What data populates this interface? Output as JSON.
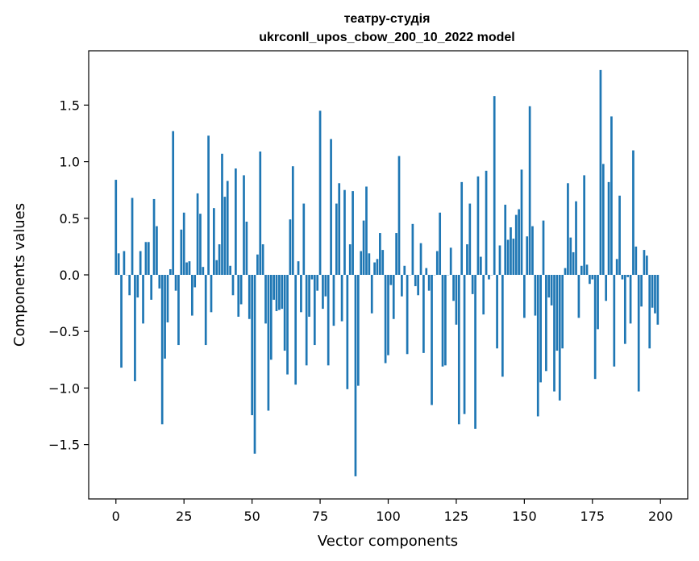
{
  "chart_data": {
    "type": "bar",
    "title_line1": "театру-студія",
    "title_line2": "ukrconll_upos_cbow_200_10_2022 model",
    "xlabel": "Vector components",
    "ylabel": "Components values",
    "xlim": [
      -10,
      210
    ],
    "ylim": [
      -1.98,
      1.98
    ],
    "xticks": [
      0,
      25,
      50,
      75,
      100,
      125,
      150,
      175,
      200
    ],
    "yticks": [
      -1.5,
      -1.0,
      -0.5,
      0.0,
      0.5,
      1.0,
      1.5
    ],
    "ytick_labels": [
      "−1.5",
      "−1.0",
      "−0.5",
      "0.0",
      "0.5",
      "1.0",
      "1.5"
    ],
    "grid": false,
    "bar_color": "#1f77b4",
    "values": [
      0.84,
      0.19,
      -0.82,
      0.21,
      0.0,
      -0.18,
      0.68,
      -0.94,
      -0.2,
      0.21,
      -0.43,
      0.29,
      0.29,
      -0.22,
      0.67,
      0.43,
      -0.12,
      -1.32,
      -0.74,
      -0.42,
      0.05,
      1.27,
      -0.14,
      -0.62,
      0.4,
      0.55,
      0.11,
      0.12,
      -0.36,
      -0.11,
      0.72,
      0.54,
      0.07,
      -0.62,
      1.23,
      -0.33,
      0.59,
      0.13,
      0.27,
      1.07,
      0.69,
      0.83,
      0.08,
      -0.18,
      0.94,
      -0.37,
      -0.26,
      0.88,
      0.47,
      -0.39,
      -1.24,
      -1.58,
      0.18,
      1.09,
      0.27,
      -0.43,
      -1.2,
      -0.75,
      -0.22,
      -0.32,
      -0.31,
      -0.3,
      -0.67,
      -0.88,
      0.49,
      0.96,
      -0.97,
      0.12,
      -0.33,
      0.63,
      -0.8,
      -0.37,
      -0.04,
      -0.62,
      -0.14,
      1.45,
      -0.3,
      -0.19,
      -0.8,
      1.2,
      -0.45,
      0.63,
      0.81,
      -0.41,
      0.75,
      -1.01,
      0.27,
      0.74,
      -1.78,
      -0.98,
      0.21,
      0.48,
      0.78,
      0.19,
      -0.34,
      0.11,
      0.14,
      0.37,
      0.22,
      -0.78,
      -0.71,
      -0.09,
      -0.39,
      0.37,
      1.05,
      -0.19,
      0.08,
      -0.7,
      0.0,
      0.45,
      -0.1,
      -0.18,
      0.28,
      -0.69,
      0.06,
      -0.14,
      -1.15,
      0.0,
      0.21,
      0.55,
      -0.81,
      -0.8,
      0.0,
      0.24,
      -0.23,
      -0.44,
      -1.32,
      0.82,
      -1.23,
      0.27,
      0.63,
      -0.17,
      -1.36,
      0.87,
      0.16,
      -0.35,
      0.92,
      -0.04,
      0.0,
      1.58,
      -0.65,
      0.26,
      -0.9,
      0.62,
      0.31,
      0.42,
      0.32,
      0.53,
      0.58,
      0.93,
      -0.38,
      0.34,
      1.49,
      0.43,
      -0.36,
      -1.25,
      -0.95,
      0.48,
      -0.85,
      -0.2,
      -0.27,
      -1.03,
      -0.67,
      -1.11,
      -0.65,
      0.06,
      0.81,
      0.33,
      0.2,
      0.65,
      -0.38,
      0.08,
      0.88,
      0.09,
      -0.08,
      -0.04,
      -0.92,
      -0.48,
      1.81,
      0.98,
      -0.23,
      0.82,
      1.4,
      -0.81,
      0.14,
      0.7,
      -0.04,
      -0.61,
      -0.02,
      -0.43,
      1.1,
      0.25,
      -1.03,
      -0.28,
      0.22,
      0.17,
      -0.65,
      -0.29,
      -0.34,
      -0.44
    ]
  }
}
